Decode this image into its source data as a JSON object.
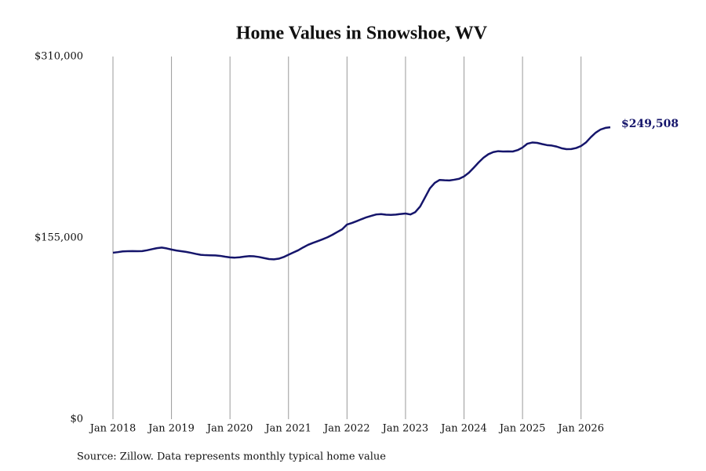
{
  "chart_data": {
    "type": "line",
    "title": "Home Values in Snowshoe, WV",
    "source": "Source: Zillow. Data represents monthly typical home value",
    "x": [
      "2018-01",
      "2018-02",
      "2018-03",
      "2018-04",
      "2018-05",
      "2018-06",
      "2018-07",
      "2018-08",
      "2018-09",
      "2018-10",
      "2018-11",
      "2018-12",
      "2019-01",
      "2019-02",
      "2019-03",
      "2019-04",
      "2019-05",
      "2019-06",
      "2019-07",
      "2019-08",
      "2019-09",
      "2019-10",
      "2019-11",
      "2019-12",
      "2020-01",
      "2020-02",
      "2020-03",
      "2020-04",
      "2020-05",
      "2020-06",
      "2020-07",
      "2020-08",
      "2020-09",
      "2020-10",
      "2020-11",
      "2020-12",
      "2021-01",
      "2021-02",
      "2021-03",
      "2021-04",
      "2021-05",
      "2021-06",
      "2021-07",
      "2021-08",
      "2021-09",
      "2021-10",
      "2021-11",
      "2021-12",
      "2022-01",
      "2022-02",
      "2022-03",
      "2022-04",
      "2022-05",
      "2022-06",
      "2022-07",
      "2022-08",
      "2022-09",
      "2022-10",
      "2022-11",
      "2022-12",
      "2023-01",
      "2023-02",
      "2023-03",
      "2023-04",
      "2023-05",
      "2023-06",
      "2023-07",
      "2023-08",
      "2023-09",
      "2023-10",
      "2023-11",
      "2023-12",
      "2024-01",
      "2024-02",
      "2024-03",
      "2024-04",
      "2024-05",
      "2024-06",
      "2024-07",
      "2024-08",
      "2024-09",
      "2024-10",
      "2024-11",
      "2024-12",
      "2025-01",
      "2025-02",
      "2025-03",
      "2025-04",
      "2025-05",
      "2025-06",
      "2025-07",
      "2025-08",
      "2025-09",
      "2025-10",
      "2025-11",
      "2025-12",
      "2026-01",
      "2026-02",
      "2026-03",
      "2026-04",
      "2026-05",
      "2026-06",
      "2026-07"
    ],
    "values": [
      142300,
      142800,
      143400,
      143600,
      143700,
      143600,
      143700,
      144400,
      145300,
      146200,
      146700,
      146000,
      145000,
      144200,
      143600,
      143000,
      142200,
      141300,
      140500,
      140200,
      140100,
      140000,
      139600,
      138900,
      138300,
      138100,
      138400,
      139000,
      139400,
      139200,
      138600,
      137700,
      136900,
      136600,
      137200,
      138600,
      140600,
      142500,
      144400,
      146800,
      149000,
      150700,
      152200,
      153800,
      155500,
      157600,
      160000,
      162300,
      166400,
      167700,
      169300,
      171000,
      172600,
      173800,
      175000,
      175300,
      174800,
      174600,
      174900,
      175400,
      175800,
      175000,
      177000,
      181800,
      189500,
      197300,
      202000,
      204500,
      204200,
      204100,
      204700,
      205500,
      207500,
      210700,
      215000,
      219500,
      223500,
      226500,
      228300,
      229100,
      228800,
      228900,
      228800,
      230000,
      232200,
      235500,
      236500,
      236200,
      235200,
      234300,
      233900,
      233000,
      231600,
      230800,
      230900,
      231800,
      233500,
      236500,
      241000,
      244900,
      247600,
      249000,
      249508
    ],
    "value_labels": [
      null,
      null,
      null,
      null,
      null,
      null,
      null,
      null,
      null,
      null,
      null,
      null,
      null,
      null,
      null,
      null,
      null,
      null,
      null,
      null,
      null,
      null,
      null,
      null,
      null,
      null,
      null,
      null,
      null,
      null,
      null,
      null,
      null,
      null,
      null,
      null,
      null,
      null,
      null,
      null,
      null,
      null,
      null,
      null,
      null,
      null,
      null,
      null,
      null,
      null,
      null,
      null,
      null,
      null,
      null,
      null,
      null,
      null,
      null,
      null,
      null,
      null,
      null,
      null,
      null,
      null,
      null,
      null,
      null,
      null,
      null,
      null,
      null,
      null,
      null,
      null,
      null,
      null,
      null,
      null,
      null,
      null,
      null,
      null,
      null,
      null,
      null,
      null,
      null,
      null,
      null,
      null,
      null,
      null,
      null,
      null,
      null,
      null,
      null,
      null,
      null,
      null,
      "$249,508"
    ],
    "color": "#15156b",
    "xlim": [
      "2018-01",
      "2026-07"
    ],
    "xticks": [
      {
        "value": "2018-01",
        "label": "Jan 2018"
      },
      {
        "value": "2019-01",
        "label": "Jan 2019"
      },
      {
        "value": "2020-01",
        "label": "Jan 2020"
      },
      {
        "value": "2021-01",
        "label": "Jan 2021"
      },
      {
        "value": "2022-01",
        "label": "Jan 2022"
      },
      {
        "value": "2023-01",
        "label": "Jan 2023"
      },
      {
        "value": "2024-01",
        "label": "Jan 2024"
      },
      {
        "value": "2025-01",
        "label": "Jan 2025"
      },
      {
        "value": "2026-01",
        "label": "Jan 2026"
      }
    ],
    "ylim": [
      0,
      310000
    ],
    "yticks": [
      {
        "value": 0,
        "label": "$0"
      },
      {
        "value": 155000,
        "label": "$155,000"
      },
      {
        "value": 310000,
        "label": "$310,000"
      }
    ],
    "grid": "x"
  }
}
